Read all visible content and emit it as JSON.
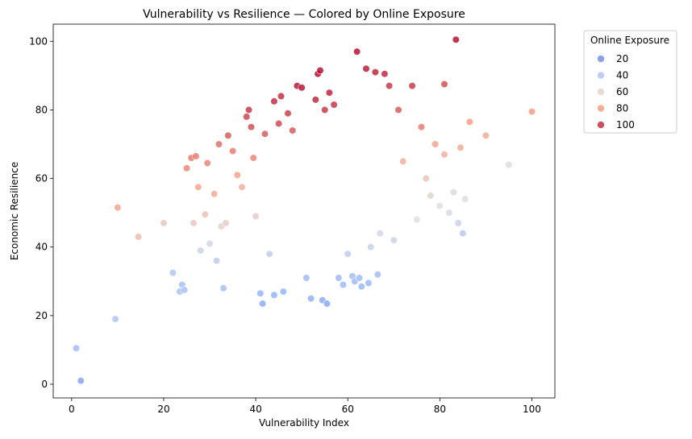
{
  "chart_data": {
    "type": "scatter",
    "title": "Vulnerability vs Resilience — Colored by Online Exposure",
    "xlabel": "Vulnerability Index",
    "ylabel": "Economic Resilience",
    "xlim": [
      -4,
      105
    ],
    "ylim": [
      -4,
      105
    ],
    "xticks": [
      0,
      20,
      40,
      60,
      80,
      100
    ],
    "yticks": [
      0,
      20,
      40,
      60,
      80,
      100
    ],
    "grid": false,
    "colormap": "coolwarm",
    "color_range": [
      5,
      105
    ],
    "legend": {
      "title": "Online Exposure",
      "placement": "outside-right-top",
      "entries": [
        {
          "label": "20",
          "value": 20
        },
        {
          "label": "40",
          "value": 40
        },
        {
          "label": "60",
          "value": 60
        },
        {
          "label": "80",
          "value": 80
        },
        {
          "label": "100",
          "value": 100
        }
      ]
    },
    "points": [
      [
        1,
        10.5,
        35
      ],
      [
        2,
        1,
        26
      ],
      [
        9.5,
        19,
        40
      ],
      [
        10,
        51.5,
        78
      ],
      [
        14.5,
        43,
        68
      ],
      [
        20,
        47,
        64
      ],
      [
        22,
        32.5,
        40
      ],
      [
        23.5,
        27,
        38
      ],
      [
        24,
        29,
        36
      ],
      [
        24.5,
        27.5,
        37
      ],
      [
        25,
        63,
        84
      ],
      [
        26,
        66,
        86
      ],
      [
        26.5,
        47,
        64
      ],
      [
        27,
        66.5,
        86
      ],
      [
        27.5,
        57.5,
        76
      ],
      [
        28,
        39,
        48
      ],
      [
        29,
        49.5,
        66
      ],
      [
        29.5,
        64.5,
        84
      ],
      [
        30,
        41,
        50
      ],
      [
        31,
        55.5,
        74
      ],
      [
        31.5,
        36,
        44
      ],
      [
        32,
        70,
        88
      ],
      [
        32.5,
        46,
        60
      ],
      [
        33,
        28,
        36
      ],
      [
        33.5,
        47,
        62
      ],
      [
        34,
        72.5,
        92
      ],
      [
        35,
        68,
        86
      ],
      [
        36,
        61,
        78
      ],
      [
        37,
        57.5,
        72
      ],
      [
        38,
        78,
        96
      ],
      [
        38.5,
        80,
        98
      ],
      [
        39,
        75,
        94
      ],
      [
        39.5,
        66,
        84
      ],
      [
        40,
        49,
        62
      ],
      [
        41,
        26.5,
        30
      ],
      [
        41.5,
        23.5,
        28
      ],
      [
        42,
        73,
        92
      ],
      [
        43,
        38,
        45
      ],
      [
        44,
        82.5,
        100
      ],
      [
        44,
        26,
        30
      ],
      [
        45,
        76,
        95
      ],
      [
        45.5,
        84,
        100
      ],
      [
        46,
        27,
        31
      ],
      [
        47,
        79,
        97
      ],
      [
        48,
        74,
        92
      ],
      [
        49,
        87,
        104
      ],
      [
        50,
        86.5,
        104
      ],
      [
        51,
        31,
        34
      ],
      [
        52,
        25,
        29
      ],
      [
        53,
        83,
        101
      ],
      [
        53.5,
        90.5,
        105
      ],
      [
        54,
        91.5,
        105
      ],
      [
        54.5,
        24.5,
        28
      ],
      [
        55,
        80,
        98
      ],
      [
        55.5,
        23.5,
        27
      ],
      [
        56,
        85,
        102
      ],
      [
        57,
        81.5,
        99
      ],
      [
        58,
        31,
        34
      ],
      [
        59,
        29,
        33
      ],
      [
        60,
        38,
        44
      ],
      [
        61,
        31.5,
        35
      ],
      [
        61.5,
        30,
        33
      ],
      [
        62,
        97,
        105
      ],
      [
        62.5,
        31,
        34
      ],
      [
        63,
        28.5,
        32
      ],
      [
        64,
        92,
        103
      ],
      [
        64.5,
        29.5,
        32
      ],
      [
        65,
        40,
        46
      ],
      [
        66,
        91,
        102
      ],
      [
        66.5,
        32,
        35
      ],
      [
        67,
        44,
        50
      ],
      [
        68,
        90.5,
        101
      ],
      [
        69,
        87,
        98
      ],
      [
        70,
        42,
        48
      ],
      [
        71,
        80,
        92
      ],
      [
        72,
        65,
        72
      ],
      [
        74,
        87,
        98
      ],
      [
        75,
        48,
        55
      ],
      [
        76,
        75,
        86
      ],
      [
        77,
        60,
        65
      ],
      [
        78,
        55,
        59
      ],
      [
        79,
        70,
        78
      ],
      [
        80,
        52,
        55
      ],
      [
        81,
        87.5,
        94
      ],
      [
        81,
        67,
        72
      ],
      [
        82,
        50,
        52
      ],
      [
        83,
        56,
        58
      ],
      [
        83.5,
        100.5,
        105
      ],
      [
        84,
        47,
        48
      ],
      [
        84.5,
        69,
        74
      ],
      [
        85,
        44,
        42
      ],
      [
        85.5,
        54,
        54
      ],
      [
        86.5,
        76.5,
        80
      ],
      [
        90,
        72.5,
        74
      ],
      [
        95,
        64,
        56
      ],
      [
        100,
        79.5,
        80
      ]
    ]
  }
}
